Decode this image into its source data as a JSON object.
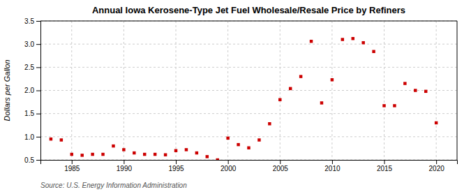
{
  "chart_data": {
    "type": "scatter",
    "title": "Annual Iowa Kerosene-Type Jet Fuel Wholesale/Resale Price by Refiners",
    "ylabel": "Dollars per Gallon",
    "source": "Source: U.S. Energy Information Administration",
    "x": [
      1983,
      1984,
      1985,
      1986,
      1987,
      1988,
      1989,
      1990,
      1991,
      1992,
      1993,
      1994,
      1995,
      1996,
      1997,
      1998,
      1999,
      2000,
      2001,
      2002,
      2003,
      2004,
      2005,
      2006,
      2007,
      2008,
      2009,
      2010,
      2011,
      2012,
      2013,
      2014,
      2015,
      2016,
      2017,
      2018,
      2019,
      2020
    ],
    "values": [
      0.95,
      0.93,
      0.62,
      0.6,
      0.62,
      0.62,
      0.8,
      0.72,
      0.65,
      0.62,
      0.62,
      0.61,
      0.7,
      0.72,
      0.65,
      0.57,
      0.5,
      0.97,
      0.83,
      0.76,
      0.93,
      1.28,
      1.8,
      2.04,
      2.3,
      3.06,
      1.73,
      2.23,
      3.1,
      3.12,
      3.03,
      2.84,
      1.67,
      1.67,
      2.15,
      2.0,
      1.98,
      1.3
    ],
    "color": "#cc0000",
    "marker": "square",
    "xlim": [
      1982,
      2022
    ],
    "ylim": [
      0.5,
      3.5
    ],
    "xticks": [
      1985,
      1990,
      1995,
      2000,
      2005,
      2010,
      2015,
      2020
    ],
    "yticks": [
      0.5,
      {
        "value": 1.0,
        "label": "1.0"
      },
      1.5,
      {
        "value": 2.0,
        "label": "2.0"
      },
      2.5,
      {
        "value": 3.0,
        "label": "3.0"
      },
      3.5
    ],
    "grid": true
  }
}
